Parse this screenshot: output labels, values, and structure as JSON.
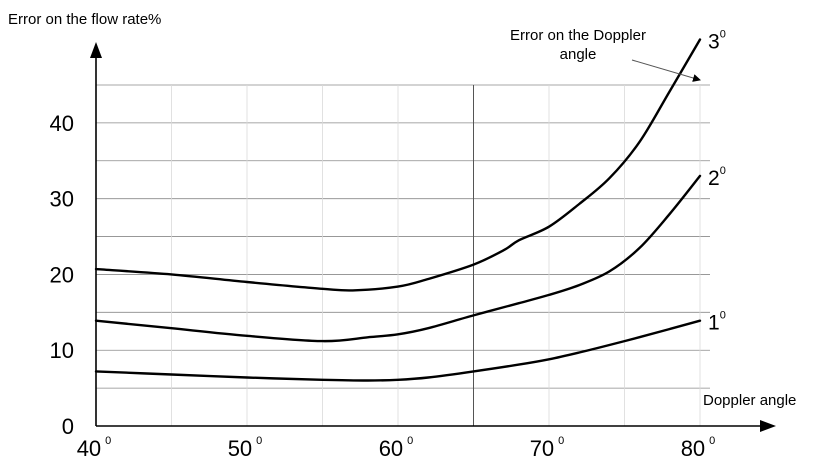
{
  "chart_data": {
    "type": "line",
    "title": "",
    "ylabel": "Error on the flow rate%",
    "xlabel": "Doppler angle",
    "legend_title_line1": "Error on the Doppler",
    "legend_title_line2": "angle",
    "xlim": [
      40,
      80
    ],
    "ylim": [
      0,
      45
    ],
    "x_ticks": [
      {
        "value": 40,
        "label": "40",
        "sup": "0"
      },
      {
        "value": 50,
        "label": "50",
        "sup": "0"
      },
      {
        "value": 60,
        "label": "60",
        "sup": "0"
      },
      {
        "value": 70,
        "label": "70",
        "sup": "0"
      },
      {
        "value": 80,
        "label": "80",
        "sup": "0"
      }
    ],
    "y_ticks": [
      {
        "value": 0,
        "label": "0"
      },
      {
        "value": 10,
        "label": "10"
      },
      {
        "value": 20,
        "label": "20"
      },
      {
        "value": 30,
        "label": "30"
      },
      {
        "value": 40,
        "label": "40"
      }
    ],
    "grid_y": [
      5,
      10,
      15,
      20,
      25,
      30,
      35,
      40,
      45
    ],
    "grid_x": [
      45,
      50,
      55,
      60,
      65,
      70,
      75,
      80
    ],
    "grid_x_emphasis": [
      65
    ],
    "series": [
      {
        "name": "1",
        "sup": "0",
        "x": [
          40,
          45,
          50,
          55,
          58,
          60,
          62,
          65,
          68,
          70,
          72,
          75,
          78,
          80
        ],
        "y": [
          7.2,
          6.8,
          6.4,
          6.1,
          6.0,
          6.1,
          6.4,
          7.2,
          8.1,
          8.8,
          9.7,
          11.2,
          12.8,
          13.9
        ]
      },
      {
        "name": "2",
        "sup": "0",
        "x": [
          40,
          45,
          50,
          55,
          58,
          60,
          62,
          65,
          68,
          70,
          72,
          74,
          76,
          78,
          80
        ],
        "y": [
          13.9,
          12.9,
          11.9,
          11.2,
          11.7,
          12.1,
          12.9,
          14.6,
          16.2,
          17.3,
          18.6,
          20.4,
          23.5,
          28.0,
          33.0
        ]
      },
      {
        "name": "3",
        "sup": "0",
        "x": [
          40,
          45,
          50,
          55,
          57,
          60,
          62,
          65,
          67,
          68,
          70,
          72,
          74,
          76,
          78,
          80
        ],
        "y": [
          20.7,
          20.0,
          19.0,
          18.1,
          17.9,
          18.4,
          19.4,
          21.3,
          23.2,
          24.5,
          26.3,
          29.3,
          32.7,
          37.5,
          44.2,
          51.0
        ]
      }
    ]
  }
}
